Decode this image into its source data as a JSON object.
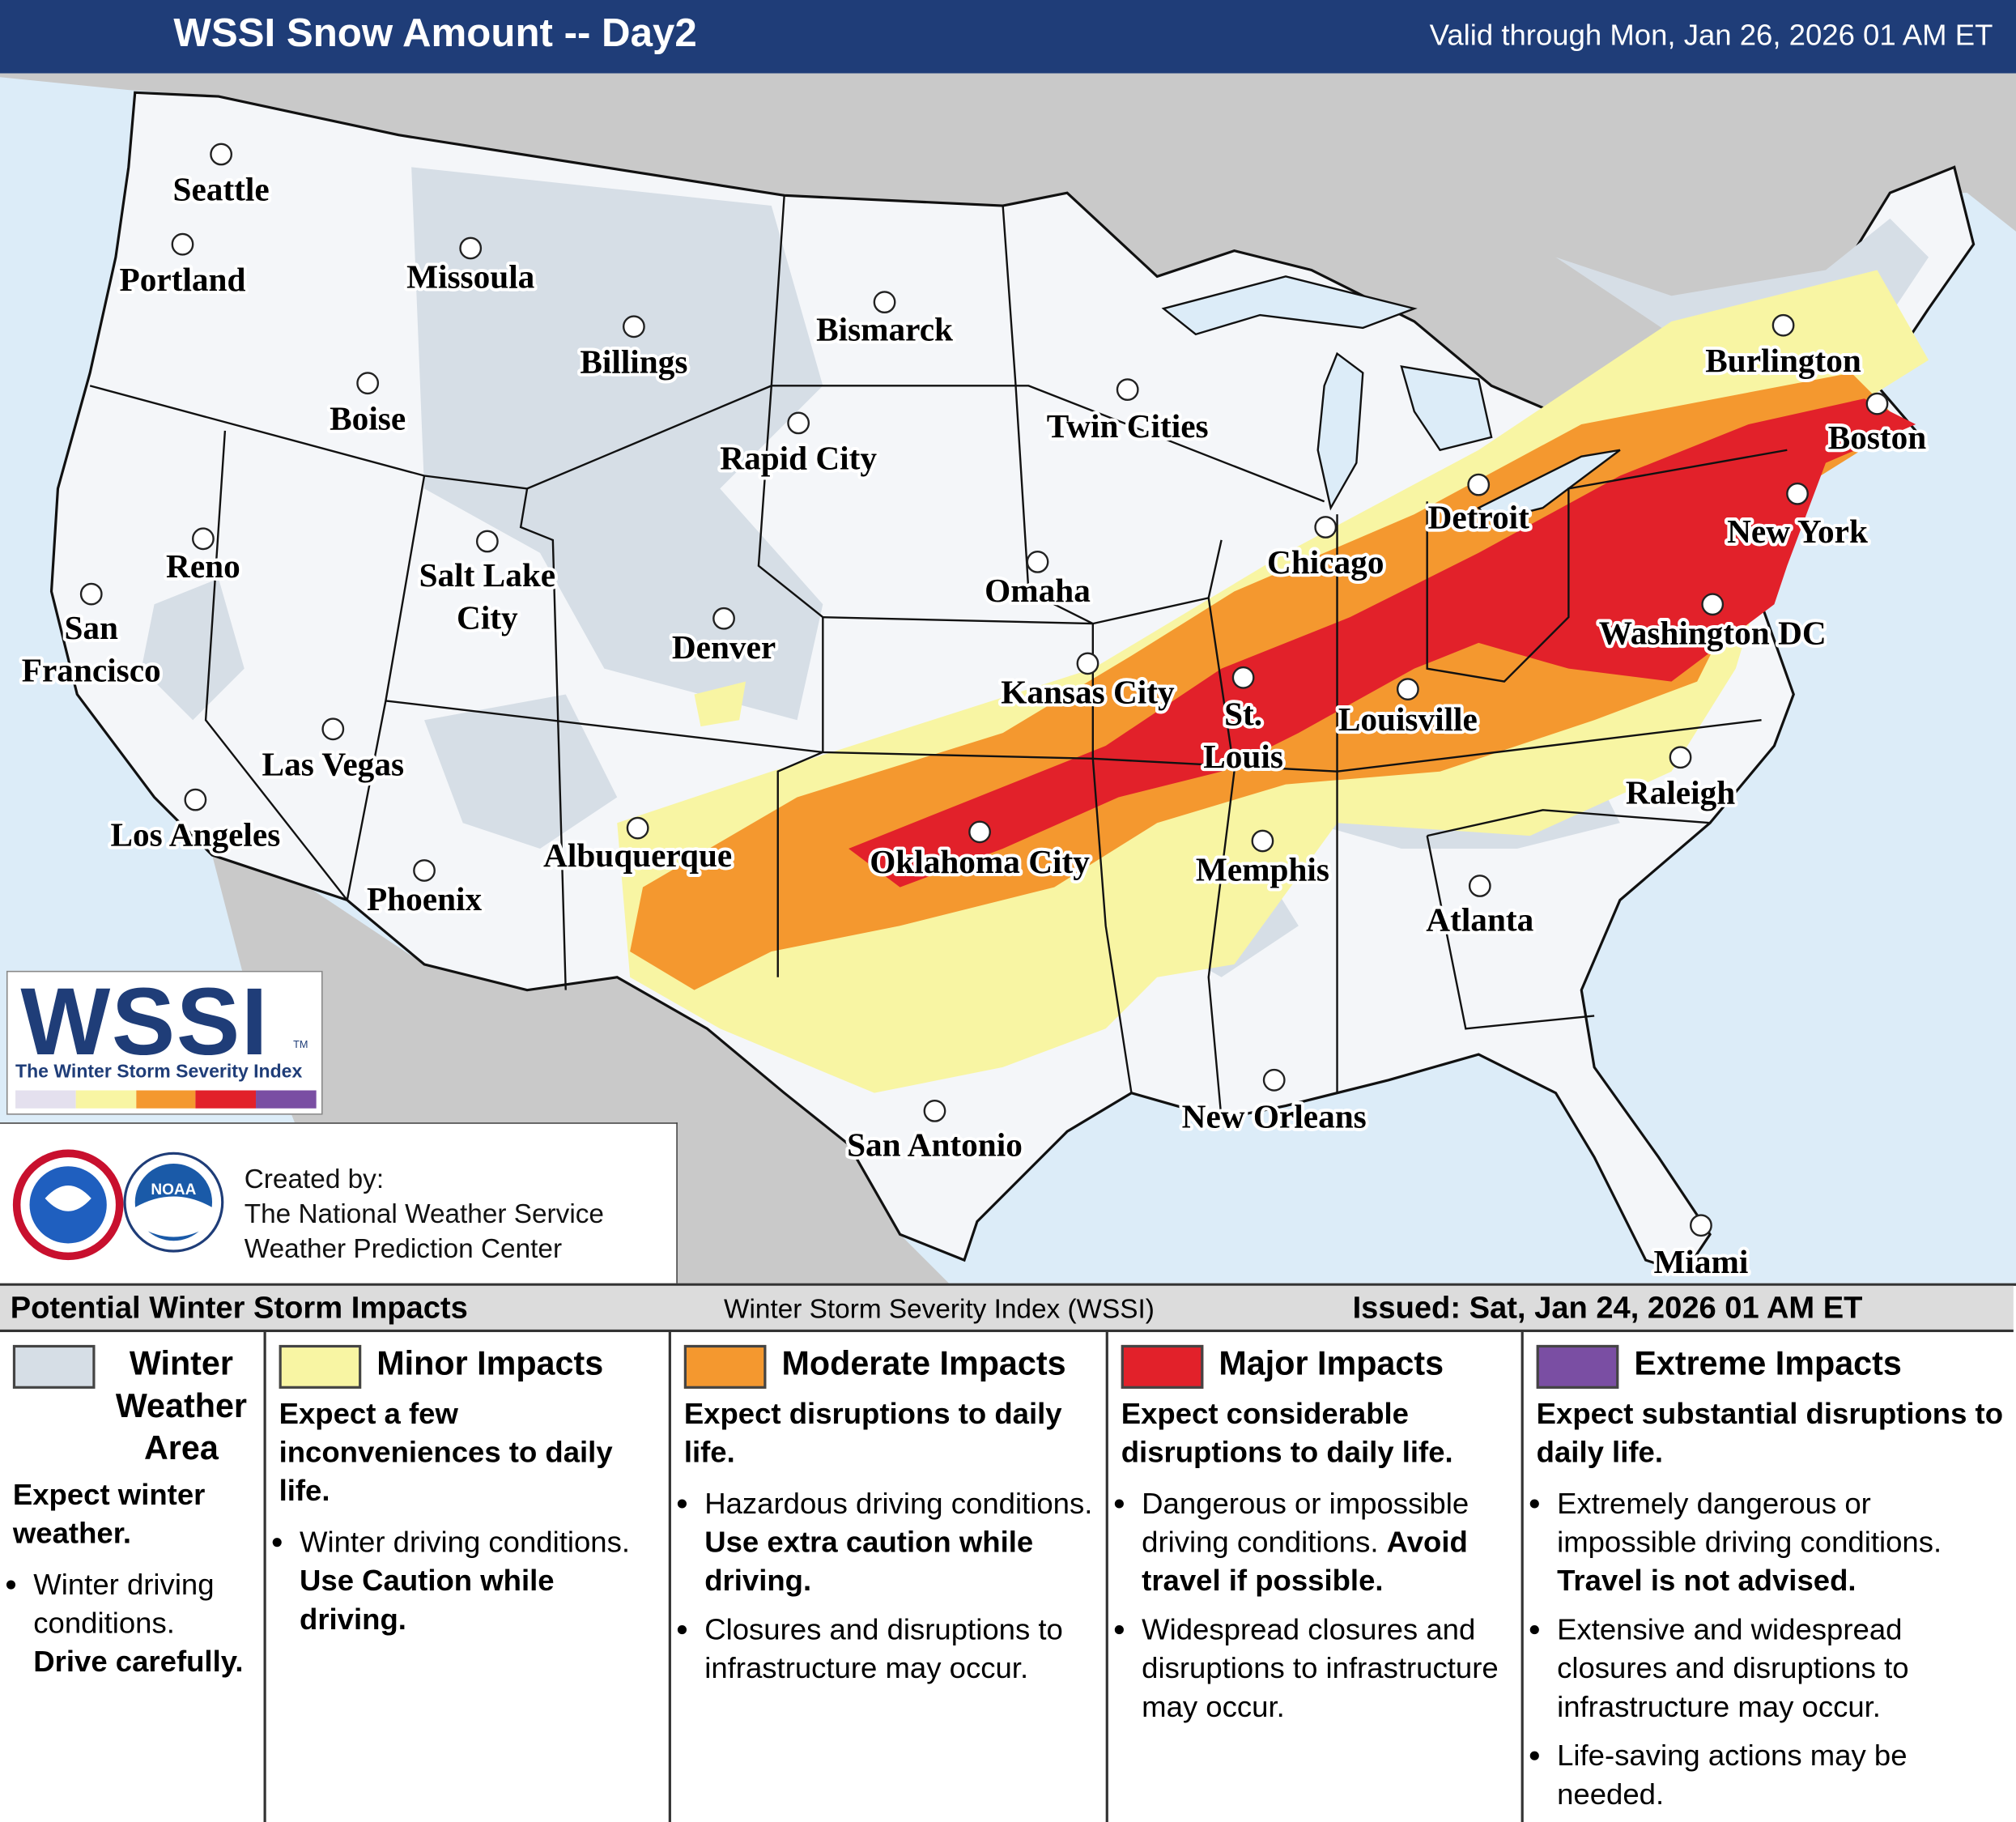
{
  "header": {
    "title": "WSSI Snow Amount -- Day2",
    "valid": "Valid through Mon, Jan 26, 2026 01 AM ET"
  },
  "map": {
    "cities": [
      {
        "lines": [
          "Seattle"
        ]
      },
      {
        "lines": [
          "Portland"
        ]
      },
      {
        "lines": [
          "Missoula"
        ]
      },
      {
        "lines": [
          "Billings"
        ]
      },
      {
        "lines": [
          "Bismarck"
        ]
      },
      {
        "lines": [
          "Boise"
        ]
      },
      {
        "lines": [
          "Rapid City"
        ]
      },
      {
        "lines": [
          "Twin Cities"
        ]
      },
      {
        "lines": [
          "Reno"
        ]
      },
      {
        "lines": [
          "Salt Lake",
          "City"
        ]
      },
      {
        "lines": [
          "Burlington"
        ]
      },
      {
        "lines": [
          "Boston"
        ]
      },
      {
        "lines": [
          "Detroit"
        ]
      },
      {
        "lines": [
          "Chicago"
        ]
      },
      {
        "lines": [
          "New York"
        ]
      },
      {
        "lines": [
          "Omaha"
        ]
      },
      {
        "lines": [
          "San",
          "Francisco"
        ]
      },
      {
        "lines": [
          "Denver"
        ]
      },
      {
        "lines": [
          "Washington DC"
        ]
      },
      {
        "lines": [
          "Kansas City"
        ]
      },
      {
        "lines": [
          "St.",
          "Louis"
        ]
      },
      {
        "lines": [
          "Louisville"
        ]
      },
      {
        "lines": [
          "Las Vegas"
        ]
      },
      {
        "lines": [
          "Los Angeles"
        ]
      },
      {
        "lines": [
          "Raleigh"
        ]
      },
      {
        "lines": [
          "Albuquerque"
        ]
      },
      {
        "lines": [
          "Oklahoma City"
        ]
      },
      {
        "lines": [
          "Memphis"
        ]
      },
      {
        "lines": [
          "Atlanta"
        ]
      },
      {
        "lines": [
          "Phoenix"
        ]
      },
      {
        "lines": [
          "New Orleans"
        ]
      },
      {
        "lines": [
          "San Antonio"
        ]
      },
      {
        "lines": [
          "Miami"
        ]
      }
    ]
  },
  "logo": {
    "name": "WSSI",
    "tm": "TM",
    "tagline": "The Winter Storm Severity Index"
  },
  "credits": {
    "lines": [
      "Created by:",
      "The National Weather Service",
      "Weather Prediction Center"
    ],
    "noaa": "NOAA"
  },
  "legend": {
    "title": "Potential Winter Storm Impacts",
    "subtitle": "Winter Storm Severity Index (WSSI)",
    "issued": "Issued: Sat, Jan 24, 2026 01 AM ET",
    "categories": [
      {
        "name": "Winter Weather Area",
        "color": "#d6dee6",
        "summary": "Expect winter weather.",
        "bullets": [
          {
            "text": "Winter driving conditions.",
            "bold": "Drive carefully."
          }
        ]
      },
      {
        "name": "Minor Impacts",
        "color": "#f8f5a3",
        "summary": "Expect a few inconveniences to daily life.",
        "bullets": [
          {
            "text": "Winter driving conditions.",
            "bold": "Use Caution while driving."
          }
        ]
      },
      {
        "name": "Moderate Impacts",
        "color": "#f4982f",
        "summary": "Expect disruptions to daily life.",
        "bullets": [
          {
            "text": "Hazardous driving conditions.",
            "bold": "Use extra caution while driving."
          },
          {
            "text": "Closures and disruptions to infrastructure may occur."
          }
        ]
      },
      {
        "name": "Major Impacts",
        "color": "#e2212a",
        "summary": "Expect considerable disruptions to daily life.",
        "bullets": [
          {
            "text": "Dangerous or impossible driving conditions.",
            "bold": "Avoid travel if possible."
          },
          {
            "text": "Widespread closures and disruptions to infrastructure may occur."
          }
        ]
      },
      {
        "name": "Extreme Impacts",
        "color": "#7a4ea3",
        "summary": "Expect substantial disruptions to daily life.",
        "bullets": [
          {
            "text": "Extremely dangerous or impossible driving conditions.",
            "bold": "Travel is not advised."
          },
          {
            "text": "Extensive and widespread closures and disruptions to infrastructure may occur."
          },
          {
            "text": "Life-saving actions may be needed."
          }
        ]
      }
    ]
  }
}
